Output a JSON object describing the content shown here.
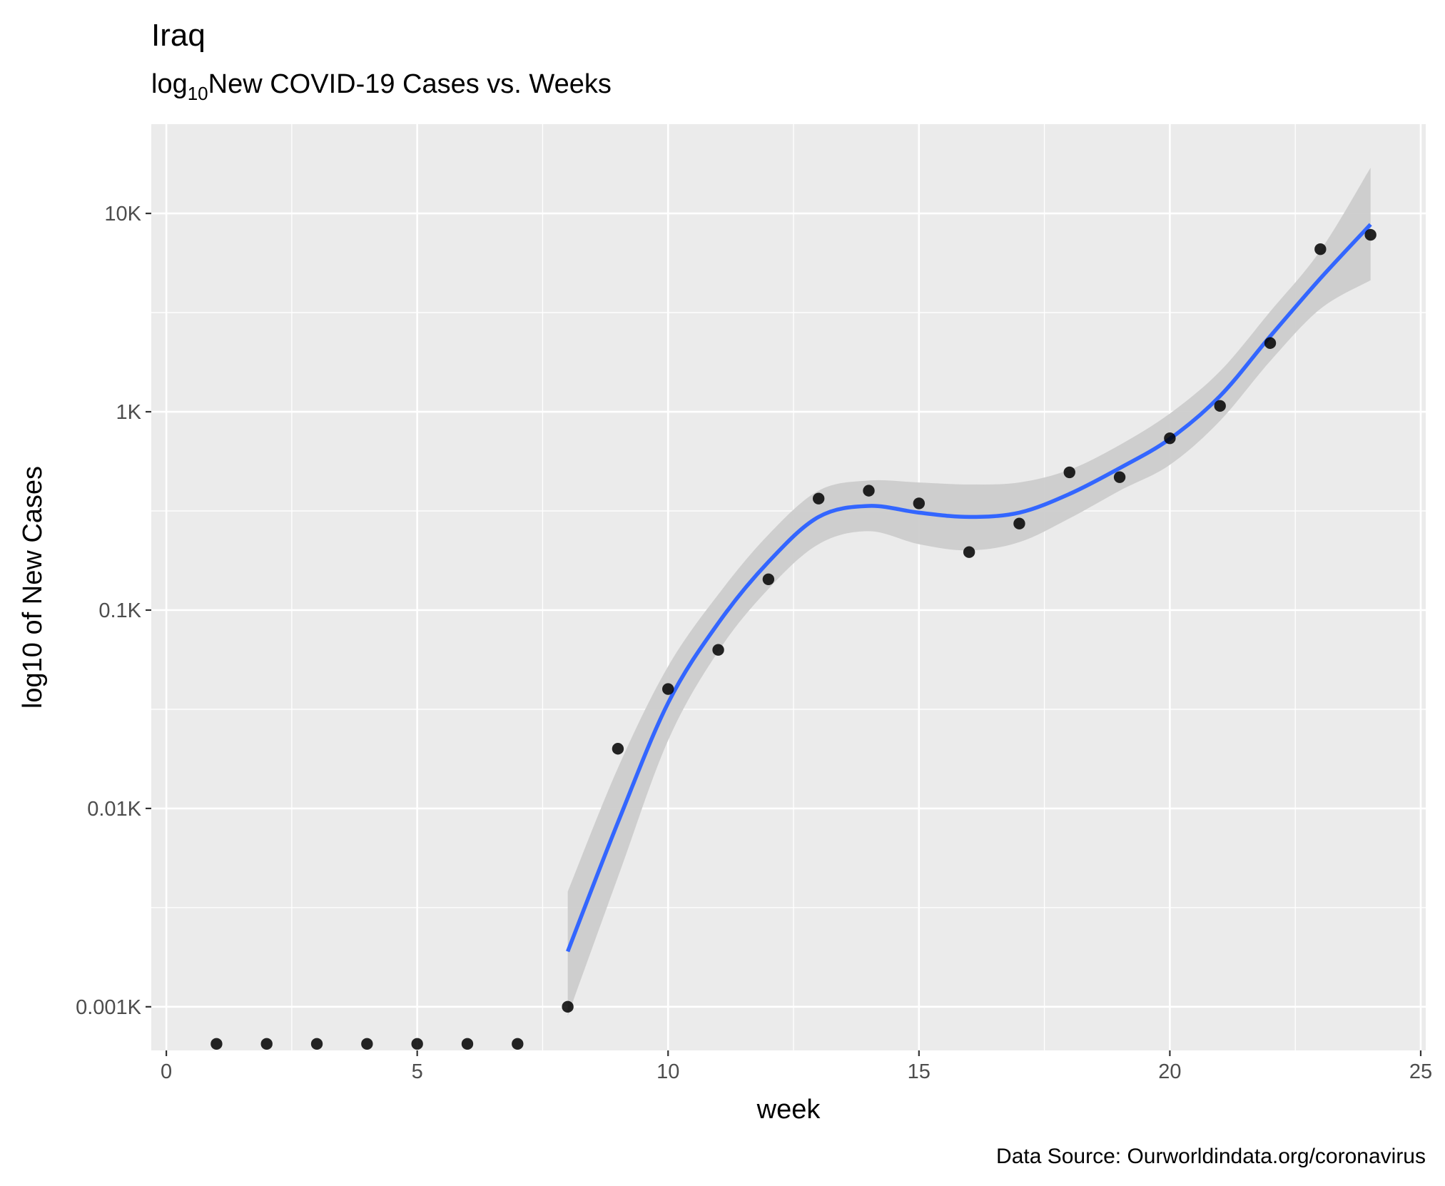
{
  "chart_data": {
    "type": "scatter",
    "title": "Iraq",
    "subtitle": {
      "prefix": "log",
      "subscript": "10",
      "rest": "New COVID-19 Cases vs. Weeks"
    },
    "xlabel": "week",
    "ylabel": "log10 of New Cases",
    "caption": "Data Source: Ourworldindata.org/coronavirus",
    "xlim": [
      -0.3,
      25.1
    ],
    "ylim_log10": [
      -3.22,
      1.45
    ],
    "y_scale": "log10",
    "grid": true,
    "x_ticks": [
      {
        "value": 0,
        "label": "0"
      },
      {
        "value": 5,
        "label": "5"
      },
      {
        "value": 10,
        "label": "10"
      },
      {
        "value": 15,
        "label": "15"
      },
      {
        "value": 20,
        "label": "20"
      },
      {
        "value": 25,
        "label": "25"
      }
    ],
    "y_ticks": [
      {
        "value": 0.001,
        "label": "0.001K"
      },
      {
        "value": 0.01,
        "label": "0.01K"
      },
      {
        "value": 0.1,
        "label": "0.1K"
      },
      {
        "value": 1,
        "label": "1K"
      },
      {
        "value": 10,
        "label": "10K"
      }
    ],
    "points": [
      {
        "x": 1,
        "y": 0.00065
      },
      {
        "x": 2,
        "y": 0.00065
      },
      {
        "x": 3,
        "y": 0.00065
      },
      {
        "x": 4,
        "y": 0.00065
      },
      {
        "x": 5,
        "y": 0.00065
      },
      {
        "x": 6,
        "y": 0.00065
      },
      {
        "x": 7,
        "y": 0.00065
      },
      {
        "x": 8,
        "y": 0.001
      },
      {
        "x": 9,
        "y": 0.02
      },
      {
        "x": 10,
        "y": 0.04
      },
      {
        "x": 11,
        "y": 0.063
      },
      {
        "x": 12,
        "y": 0.143
      },
      {
        "x": 13,
        "y": 0.365
      },
      {
        "x": 14,
        "y": 0.4
      },
      {
        "x": 15,
        "y": 0.345
      },
      {
        "x": 16,
        "y": 0.196
      },
      {
        "x": 17,
        "y": 0.273
      },
      {
        "x": 18,
        "y": 0.495
      },
      {
        "x": 19,
        "y": 0.468
      },
      {
        "x": 20,
        "y": 0.735
      },
      {
        "x": 21,
        "y": 1.07
      },
      {
        "x": 22,
        "y": 2.22
      },
      {
        "x": 23,
        "y": 6.6
      },
      {
        "x": 24,
        "y": 7.8
      }
    ],
    "smooth": {
      "color": "#3366ff",
      "band_color": "#cccccc",
      "x": [
        8,
        9,
        10,
        11,
        12,
        13,
        14,
        15,
        16,
        17,
        18,
        19,
        20,
        21,
        22,
        23,
        24
      ],
      "y": [
        0.0019,
        0.0085,
        0.034,
        0.086,
        0.175,
        0.295,
        0.335,
        0.31,
        0.295,
        0.31,
        0.385,
        0.52,
        0.73,
        1.2,
        2.4,
        4.7,
        8.8
      ],
      "lower": [
        0.0009,
        0.0045,
        0.022,
        0.062,
        0.128,
        0.215,
        0.25,
        0.215,
        0.2,
        0.22,
        0.29,
        0.4,
        0.54,
        0.9,
        1.8,
        3.3,
        4.6
      ],
      "upper": [
        0.0038,
        0.016,
        0.052,
        0.12,
        0.24,
        0.4,
        0.45,
        0.44,
        0.43,
        0.44,
        0.51,
        0.68,
        0.98,
        1.6,
        3.2,
        6.5,
        17
      ]
    }
  }
}
